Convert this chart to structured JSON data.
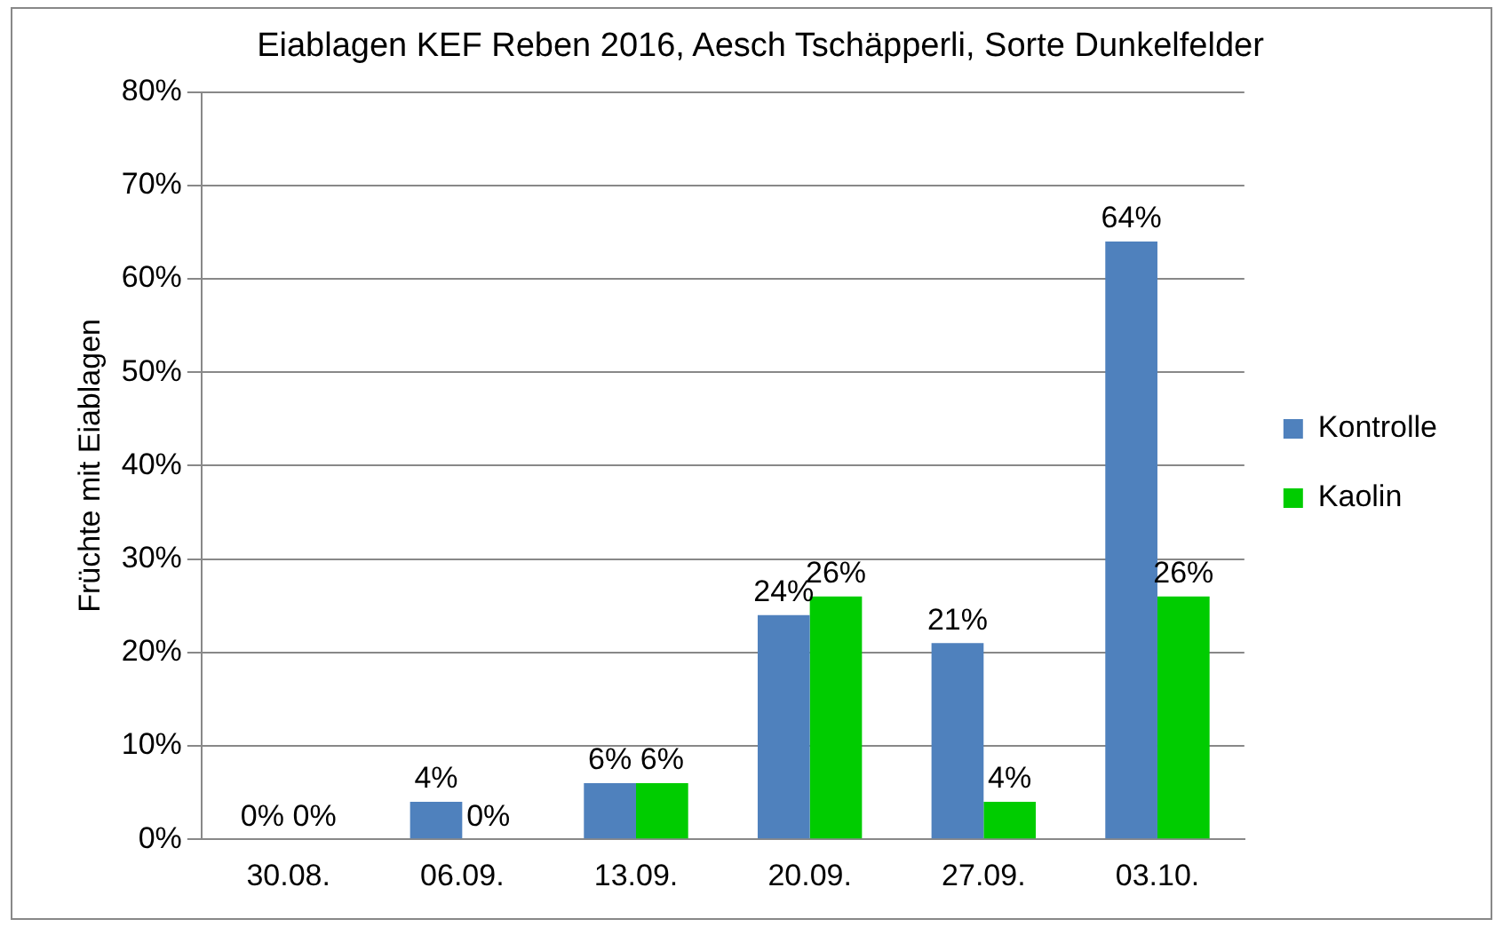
{
  "chart_data": {
    "type": "bar",
    "title": "Eiablagen KEF Reben 2016, Aesch Tschäpperli, Sorte Dunkelfelder",
    "ylabel": "Früchte mit Eiablagen",
    "categories": [
      "30.08.",
      "06.09.",
      "13.09.",
      "20.09.",
      "27.09.",
      "03.10."
    ],
    "series": [
      {
        "name": "Kontrolle",
        "color": "#4f81bd",
        "values": [
          0,
          4,
          6,
          24,
          21,
          64
        ],
        "value_labels": [
          "0%",
          "4%",
          "6%",
          "24%",
          "21%",
          "64%"
        ]
      },
      {
        "name": "Kaolin",
        "color": "#00cc00",
        "values": [
          0,
          0,
          6,
          26,
          4,
          26
        ],
        "value_labels": [
          "0%",
          "0%",
          "6%",
          "26%",
          "4%",
          "26%"
        ]
      }
    ],
    "ylim": [
      0,
      80
    ],
    "yticks": [
      {
        "value": 0,
        "label": "0%"
      },
      {
        "value": 10,
        "label": "10%"
      },
      {
        "value": 20,
        "label": "20%"
      },
      {
        "value": 30,
        "label": "30%"
      },
      {
        "value": 40,
        "label": "40%"
      },
      {
        "value": 50,
        "label": "50%"
      },
      {
        "value": 60,
        "label": "60%"
      },
      {
        "value": 70,
        "label": "70%"
      },
      {
        "value": 80,
        "label": "80%"
      }
    ],
    "grid": "y",
    "legend": "right"
  }
}
